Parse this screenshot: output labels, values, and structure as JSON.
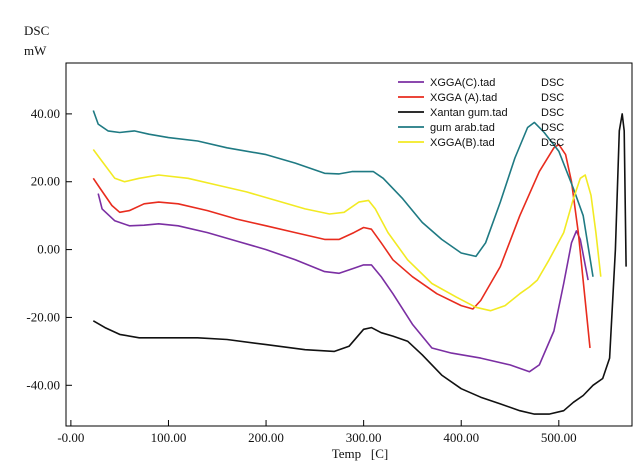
{
  "chart_data": {
    "type": "line",
    "title": "",
    "ylabel_top": "DSC",
    "ylabel_unit": "mW",
    "xlabel": "Temp   [C]",
    "xlim": [
      -5,
      575
    ],
    "ylim": [
      -52,
      55
    ],
    "x_ticks": [
      {
        "value": 0,
        "label": "-0.00"
      },
      {
        "value": 100,
        "label": "100.00"
      },
      {
        "value": 200,
        "label": "200.00"
      },
      {
        "value": 300,
        "label": "300.00"
      },
      {
        "value": 400,
        "label": "400.00"
      },
      {
        "value": 500,
        "label": "500.00"
      }
    ],
    "y_ticks": [
      {
        "value": 40,
        "label": "40.00"
      },
      {
        "value": 20,
        "label": "20.00"
      },
      {
        "value": 0,
        "label": "0.00"
      },
      {
        "value": -20,
        "label": "-20.00"
      },
      {
        "value": -40,
        "label": "-40.00"
      }
    ],
    "grid": false,
    "legend_position": "top-right",
    "series": [
      {
        "name": "XGGA(C).tad",
        "signal": "DSC",
        "color": "#7b2fa3",
        "points": [
          [
            28,
            16.5
          ],
          [
            32,
            12
          ],
          [
            45,
            8.5
          ],
          [
            60,
            7
          ],
          [
            75,
            7.2
          ],
          [
            90,
            7.6
          ],
          [
            110,
            7
          ],
          [
            140,
            5
          ],
          [
            170,
            2.5
          ],
          [
            200,
            0
          ],
          [
            230,
            -3
          ],
          [
            260,
            -6.5
          ],
          [
            275,
            -7
          ],
          [
            290,
            -5.5
          ],
          [
            300,
            -4.5
          ],
          [
            308,
            -4.5
          ],
          [
            318,
            -8
          ],
          [
            330,
            -13
          ],
          [
            350,
            -22
          ],
          [
            370,
            -29
          ],
          [
            390,
            -30.5
          ],
          [
            420,
            -32
          ],
          [
            450,
            -34
          ],
          [
            470,
            -36
          ],
          [
            480,
            -34
          ],
          [
            495,
            -24
          ],
          [
            505,
            -10
          ],
          [
            513,
            2
          ],
          [
            518,
            5.5
          ],
          [
            522,
            3
          ],
          [
            526,
            -3
          ],
          [
            530,
            -9
          ]
        ]
      },
      {
        "name": "XGGA (A).tad",
        "signal": "DSC",
        "color": "#e82c1e",
        "points": [
          [
            23,
            21
          ],
          [
            30,
            18
          ],
          [
            42,
            13
          ],
          [
            50,
            11
          ],
          [
            60,
            11.5
          ],
          [
            75,
            13.5
          ],
          [
            90,
            14
          ],
          [
            110,
            13.5
          ],
          [
            140,
            11.5
          ],
          [
            170,
            9
          ],
          [
            200,
            7
          ],
          [
            230,
            5
          ],
          [
            260,
            3
          ],
          [
            275,
            3
          ],
          [
            290,
            5
          ],
          [
            300,
            6.5
          ],
          [
            308,
            6
          ],
          [
            318,
            2
          ],
          [
            330,
            -3
          ],
          [
            350,
            -8
          ],
          [
            375,
            -13
          ],
          [
            400,
            -16.5
          ],
          [
            412,
            -17.5
          ],
          [
            420,
            -15
          ],
          [
            440,
            -5
          ],
          [
            460,
            10
          ],
          [
            480,
            23
          ],
          [
            495,
            30
          ],
          [
            500,
            31
          ],
          [
            507,
            28
          ],
          [
            513,
            20
          ],
          [
            520,
            5
          ],
          [
            527,
            -15
          ],
          [
            532,
            -29
          ]
        ]
      },
      {
        "name": "Xantan gum.tad",
        "signal": "DSC",
        "color": "#111111",
        "points": [
          [
            23,
            -21
          ],
          [
            35,
            -23
          ],
          [
            50,
            -25
          ],
          [
            70,
            -26
          ],
          [
            100,
            -26
          ],
          [
            130,
            -26
          ],
          [
            160,
            -26.5
          ],
          [
            200,
            -28
          ],
          [
            240,
            -29.5
          ],
          [
            270,
            -30
          ],
          [
            285,
            -28.5
          ],
          [
            300,
            -23.5
          ],
          [
            308,
            -23
          ],
          [
            318,
            -24.5
          ],
          [
            330,
            -25.5
          ],
          [
            345,
            -27
          ],
          [
            360,
            -31
          ],
          [
            380,
            -37
          ],
          [
            400,
            -41
          ],
          [
            420,
            -43.5
          ],
          [
            440,
            -45.5
          ],
          [
            460,
            -47.5
          ],
          [
            475,
            -48.5
          ],
          [
            490,
            -48.5
          ],
          [
            505,
            -47.5
          ],
          [
            515,
            -45
          ],
          [
            525,
            -43
          ],
          [
            535,
            -40
          ],
          [
            545,
            -38
          ],
          [
            552,
            -32
          ],
          [
            558,
            0
          ],
          [
            562,
            35
          ],
          [
            565,
            40
          ],
          [
            567,
            35
          ],
          [
            569,
            -5
          ]
        ]
      },
      {
        "name": "gum arab.tad",
        "signal": "DSC",
        "color": "#1f7a83",
        "points": [
          [
            23,
            41
          ],
          [
            28,
            37
          ],
          [
            38,
            35
          ],
          [
            50,
            34.5
          ],
          [
            65,
            35
          ],
          [
            80,
            34
          ],
          [
            100,
            33
          ],
          [
            130,
            32
          ],
          [
            160,
            30
          ],
          [
            200,
            28
          ],
          [
            230,
            25.5
          ],
          [
            260,
            22.5
          ],
          [
            275,
            22.3
          ],
          [
            288,
            23
          ],
          [
            300,
            23
          ],
          [
            310,
            23
          ],
          [
            320,
            21
          ],
          [
            340,
            15
          ],
          [
            360,
            8
          ],
          [
            380,
            3
          ],
          [
            400,
            -1
          ],
          [
            415,
            -2
          ],
          [
            425,
            2
          ],
          [
            440,
            14
          ],
          [
            455,
            27
          ],
          [
            468,
            36
          ],
          [
            475,
            37.5
          ],
          [
            485,
            34.5
          ],
          [
            500,
            29
          ],
          [
            515,
            18
          ],
          [
            525,
            10
          ],
          [
            535,
            -8
          ]
        ]
      },
      {
        "name": "XGGA(B).tad",
        "signal": "DSC",
        "color": "#f2ea23",
        "points": [
          [
            23,
            29.5
          ],
          [
            32,
            26
          ],
          [
            45,
            21
          ],
          [
            55,
            20
          ],
          [
            70,
            21
          ],
          [
            90,
            22
          ],
          [
            120,
            21
          ],
          [
            150,
            19
          ],
          [
            180,
            17
          ],
          [
            210,
            14.5
          ],
          [
            240,
            12
          ],
          [
            265,
            10.5
          ],
          [
            280,
            11
          ],
          [
            295,
            14
          ],
          [
            305,
            14.5
          ],
          [
            312,
            12
          ],
          [
            325,
            5
          ],
          [
            345,
            -3
          ],
          [
            370,
            -10
          ],
          [
            395,
            -14
          ],
          [
            415,
            -17
          ],
          [
            430,
            -18
          ],
          [
            445,
            -16.5
          ],
          [
            460,
            -13
          ],
          [
            470,
            -11
          ],
          [
            478,
            -9
          ],
          [
            490,
            -3
          ],
          [
            505,
            5
          ],
          [
            515,
            15
          ],
          [
            522,
            21
          ],
          [
            527,
            22
          ],
          [
            533,
            16
          ],
          [
            538,
            5
          ],
          [
            543,
            -8
          ]
        ]
      }
    ]
  }
}
